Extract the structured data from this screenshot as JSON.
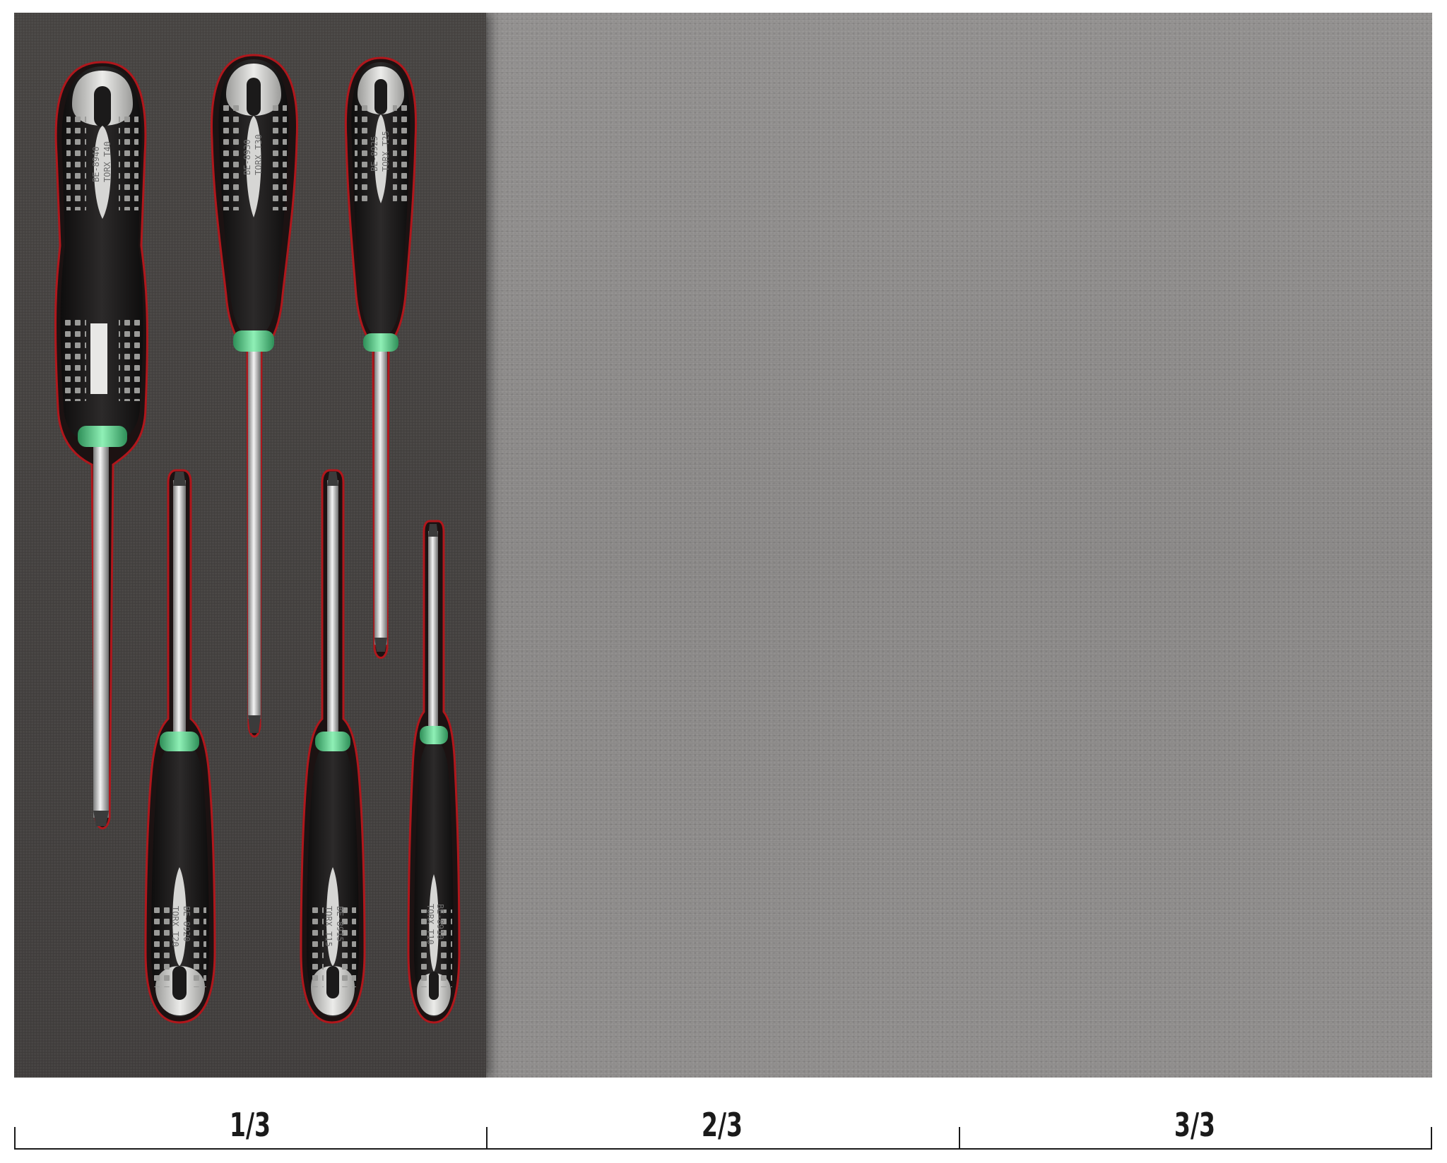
{
  "scale": {
    "segments": [
      {
        "label": "1/3"
      },
      {
        "label": "2/3"
      },
      {
        "label": "3/3"
      }
    ]
  },
  "tools": [
    {
      "id": "t40",
      "model": "BE-8940",
      "size": "TORX T40"
    },
    {
      "id": "t30",
      "model": "BE-8930",
      "size": "TORX T30"
    },
    {
      "id": "t25",
      "model": "BE-8925",
      "size": "TORX T25"
    },
    {
      "id": "t20",
      "model": "BE-8920",
      "size": "TORX T20"
    },
    {
      "id": "t15",
      "model": "BE-8915",
      "size": "TORX T15"
    },
    {
      "id": "t10",
      "model": "BE-8910",
      "size": "TORX T10"
    }
  ],
  "colors": {
    "insert_foam": "#423f3d",
    "tray_foam": "#8a8887",
    "handle_black": "#1b1a1a",
    "handle_grey": "#d6d6d4",
    "handle_collar": "#5fd38f",
    "cutout_edge": "#b0171c"
  }
}
